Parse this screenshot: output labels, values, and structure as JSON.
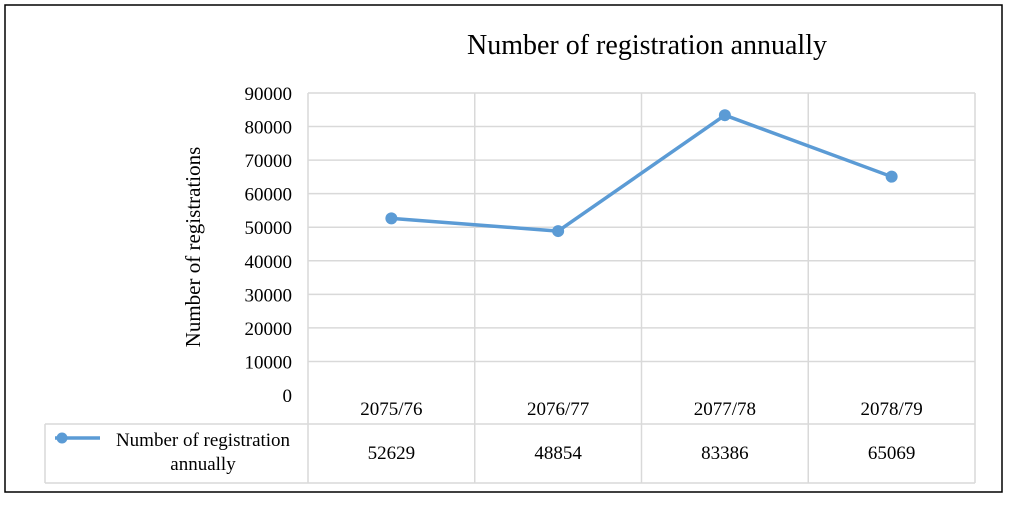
{
  "chart_data": {
    "type": "line",
    "title": "Number of registration annually",
    "xlabel": "",
    "ylabel": "Number of registrations",
    "categories": [
      "2075/76",
      "2076/77",
      "2077/78",
      "2078/79"
    ],
    "series": [
      {
        "name": "Number of registration annually",
        "values": [
          52629,
          48854,
          83386,
          65069
        ],
        "color": "#5b9bd5"
      }
    ],
    "ylim": [
      0,
      90000
    ],
    "yticks": [
      "0",
      "10000",
      "20000",
      "30000",
      "40000",
      "50000",
      "60000",
      "70000",
      "80000",
      "90000"
    ],
    "grid": true,
    "legend": "data-table-below",
    "data_table": {
      "legend_label_line1": "Number of registration",
      "legend_label_line2": "annually",
      "values": [
        "52629",
        "48854",
        "83386",
        "65069"
      ]
    }
  }
}
